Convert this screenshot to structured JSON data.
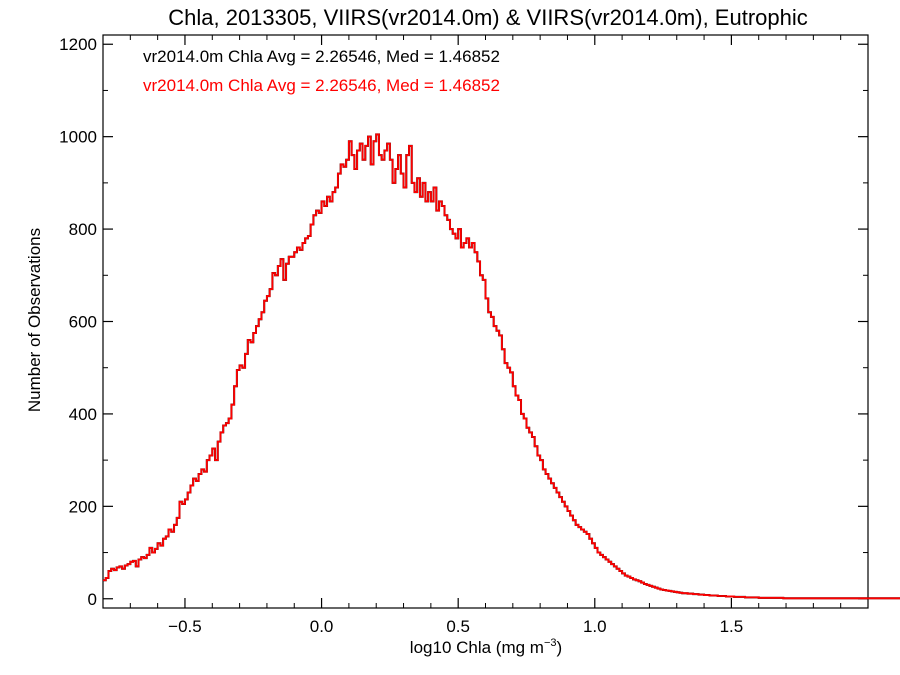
{
  "chart_data": {
    "type": "histogram-step",
    "title": "Chla, 2013305, VIIRS(vr2014.0m) & VIIRS(vr2014.0m), Eutrophic",
    "xlabel": "log10 Chla (mg m",
    "xlabel_superscript": "−3",
    "xlabel_suffix": ")",
    "ylabel": "Number of Observations",
    "xlim": [
      -0.8,
      2.0
    ],
    "ylim": [
      -20,
      1220
    ],
    "xticks": [
      -0.5,
      0.0,
      0.5,
      1.0,
      1.5
    ],
    "xtick_labels": [
      "−0.5",
      "0.0",
      "0.5",
      "1.0",
      "1.5"
    ],
    "yticks": [
      0,
      200,
      400,
      600,
      800,
      1000,
      1200
    ],
    "ytick_labels": [
      "0",
      "200",
      "400",
      "600",
      "800",
      "1000",
      "1200"
    ],
    "grid": false,
    "annotations": [
      {
        "text": "vr2014.0m Chla Avg = 2.26546, Med = 1.46852",
        "color": "#000000"
      },
      {
        "text": "vr2014.0m Chla Avg = 2.26546, Med = 1.46852",
        "color": "#ff0000"
      }
    ],
    "series": [
      {
        "color": "#000000",
        "bin_start": -0.8,
        "bin_width": 0.01,
        "values_ref": "red_overlaid"
      },
      {
        "color": "#ff0000",
        "bin_start": -0.8,
        "bin_width": 0.01,
        "values": [
          40,
          45,
          60,
          65,
          62,
          68,
          70,
          65,
          72,
          75,
          80,
          82,
          70,
          85,
          90,
          88,
          95,
          110,
          100,
          108,
          120,
          115,
          130,
          135,
          150,
          145,
          160,
          175,
          210,
          205,
          215,
          230,
          245,
          260,
          255,
          270,
          280,
          275,
          300,
          310,
          325,
          300,
          340,
          360,
          375,
          380,
          390,
          420,
          460,
          495,
          505,
          500,
          530,
          560,
          555,
          575,
          590,
          605,
          620,
          645,
          655,
          670,
          705,
          700,
          720,
          735,
          690,
          725,
          740,
          740,
          750,
          760,
          755,
          770,
          780,
          785,
          810,
          830,
          840,
          835,
          860,
          850,
          870,
          860,
          880,
          890,
          920,
          940,
          935,
          950,
          990,
          960,
          930,
          970,
          985,
          950,
          980,
          1000,
          940,
          990,
          1005,
          960,
          950,
          970,
          985,
          950,
          900,
          930,
          960,
          920,
          890,
          960,
          980,
          900,
          880,
          910,
          870,
          900,
          860,
          880,
          860,
          890,
          840,
          860,
          850,
          830,
          820,
          800,
          790,
          780,
          800,
          760,
          770,
          780,
          760,
          770,
          750,
          730,
          700,
          690,
          650,
          620,
          610,
          590,
          580,
          570,
          540,
          510,
          500,
          490,
          460,
          440,
          430,
          400,
          390,
          370,
          360,
          350,
          330,
          310,
          300,
          280,
          270,
          260,
          250,
          240,
          230,
          220,
          210,
          200,
          190,
          180,
          170,
          160,
          155,
          150,
          145,
          140,
          130,
          120,
          110,
          100,
          95,
          90,
          85,
          80,
          75,
          70,
          65,
          60,
          55,
          50,
          48,
          45,
          42,
          40,
          38,
          35,
          32,
          30,
          28,
          26,
          24,
          22,
          20,
          19,
          18,
          17,
          16,
          15,
          14,
          13,
          12,
          12,
          11,
          11,
          10,
          10,
          9,
          9,
          8,
          8,
          7,
          7,
          7,
          6,
          6,
          6,
          5,
          5,
          5,
          4,
          4,
          4,
          4,
          3,
          3,
          3,
          3,
          3,
          2,
          2,
          2,
          2,
          2,
          2,
          2,
          2,
          2,
          1,
          1,
          1,
          1,
          1,
          1,
          1,
          1,
          1,
          1,
          1,
          1,
          1,
          1,
          1,
          1,
          1,
          1,
          1,
          1,
          1,
          1,
          1,
          1,
          1,
          1,
          1,
          1,
          1,
          1,
          1,
          1,
          1,
          1,
          1,
          1,
          1,
          1,
          1,
          1,
          1,
          1,
          1,
          1,
          1,
          1,
          1,
          1,
          1,
          1,
          1
        ]
      }
    ]
  }
}
